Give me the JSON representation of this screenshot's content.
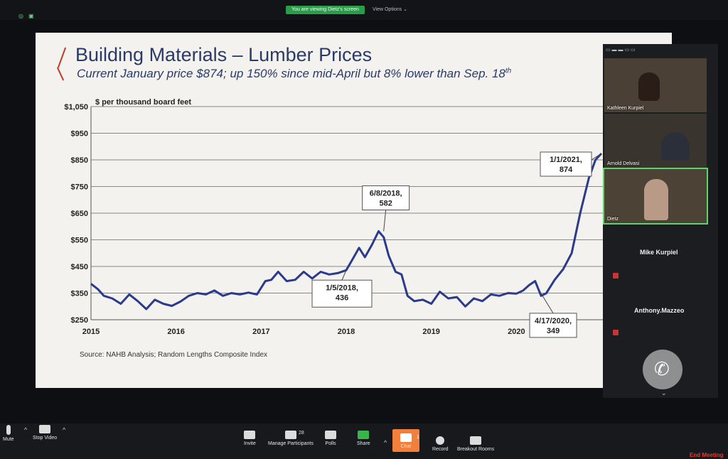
{
  "top": {
    "viewing_pill": "You are viewing Dietz's screen",
    "view_options": "View Options"
  },
  "slide": {
    "title": "Building Materials – Lumber Prices",
    "subtitle": "Current January price $874; up 150% since mid-April but 8% lower than Sep. 18",
    "subtitle_sup": "th",
    "source": "Source: NAHB Analysis; Random Lengths Composite Index",
    "line_color": "#2b3a8a"
  },
  "chart_data": {
    "type": "line",
    "ylabel": "$ per thousand board feet",
    "ylim": [
      250,
      1050
    ],
    "yticks": [
      {
        "v": 250,
        "label": "$250"
      },
      {
        "v": 350,
        "label": "$350"
      },
      {
        "v": 450,
        "label": "$450"
      },
      {
        "v": 550,
        "label": "$550"
      },
      {
        "v": 650,
        "label": "$650"
      },
      {
        "v": 750,
        "label": "$750"
      },
      {
        "v": 850,
        "label": "$850"
      },
      {
        "v": 950,
        "label": "$950"
      },
      {
        "v": 1050,
        "label": "$1,050"
      }
    ],
    "xticks": [
      {
        "v": 2015,
        "label": "2015"
      },
      {
        "v": 2016,
        "label": "2016"
      },
      {
        "v": 2017,
        "label": "2017"
      },
      {
        "v": 2018,
        "label": "2018"
      },
      {
        "v": 2019,
        "label": "2019"
      },
      {
        "v": 2020,
        "label": "2020"
      }
    ],
    "xlim": [
      2015,
      2021.05
    ],
    "series": [
      {
        "x": [
          2015.0,
          2015.08,
          2015.15,
          2015.25,
          2015.35,
          2015.45,
          2015.55,
          2015.65,
          2015.75,
          2015.85,
          2015.95,
          2016.05,
          2016.15,
          2016.25,
          2016.35,
          2016.45,
          2016.55,
          2016.65,
          2016.75,
          2016.85,
          2016.95,
          2017.05,
          2017.12,
          2017.2,
          2017.3,
          2017.4,
          2017.5,
          2017.6,
          2017.7,
          2017.8,
          2017.9,
          2018.0,
          2018.08,
          2018.15,
          2018.22,
          2018.3,
          2018.38,
          2018.44,
          2018.5,
          2018.58,
          2018.65,
          2018.72,
          2018.8,
          2018.9,
          2019.0,
          2019.1,
          2019.2,
          2019.3,
          2019.4,
          2019.5,
          2019.6,
          2019.7,
          2019.8,
          2019.9,
          2020.0,
          2020.08,
          2020.15,
          2020.22,
          2020.29,
          2020.35,
          2020.45,
          2020.55,
          2020.65,
          2020.75,
          2020.85,
          2020.93,
          2021.0
        ],
        "y": [
          385,
          365,
          340,
          330,
          310,
          345,
          320,
          290,
          325,
          310,
          302,
          318,
          340,
          350,
          345,
          360,
          340,
          350,
          345,
          352,
          345,
          395,
          400,
          430,
          395,
          400,
          430,
          405,
          430,
          420,
          425,
          436,
          480,
          520,
          485,
          530,
          582,
          560,
          490,
          430,
          420,
          340,
          320,
          325,
          310,
          355,
          330,
          335,
          300,
          330,
          320,
          345,
          340,
          350,
          348,
          360,
          380,
          395,
          340,
          349,
          400,
          440,
          500,
          650,
          780,
          850,
          874
        ]
      }
    ],
    "annotations": [
      {
        "text_lines": [
          "6/8/2018,",
          "582"
        ],
        "x": 2018.44,
        "y": 582
      },
      {
        "text_lines": [
          "1/5/2018,",
          "436"
        ],
        "x": 2018.0,
        "y": 436
      },
      {
        "text_lines": [
          "4/17/2020,",
          "349"
        ],
        "x": 2020.29,
        "y": 349
      },
      {
        "text_lines": [
          "1/1/2021,",
          "874"
        ],
        "x": 2021.0,
        "y": 874
      }
    ]
  },
  "participants": [
    {
      "name": "Kathleen Kurpiel"
    },
    {
      "name": "Arnold Delvasi"
    },
    {
      "name": "Dietz"
    },
    {
      "name": "Mike Kurpiel"
    },
    {
      "name": "Anthony.Mazzeo"
    }
  ],
  "toolbar": {
    "mute": "Mute",
    "stop_video": "Stop Video",
    "invite": "Invite",
    "manage_participants": "Manage Participants",
    "participant_count": "28",
    "polls": "Polls",
    "share": "Share",
    "chat": "Chat",
    "chat_badge": "1",
    "record": "Record",
    "breakout_rooms": "Breakout Rooms",
    "end_meeting": "End Meeting"
  }
}
